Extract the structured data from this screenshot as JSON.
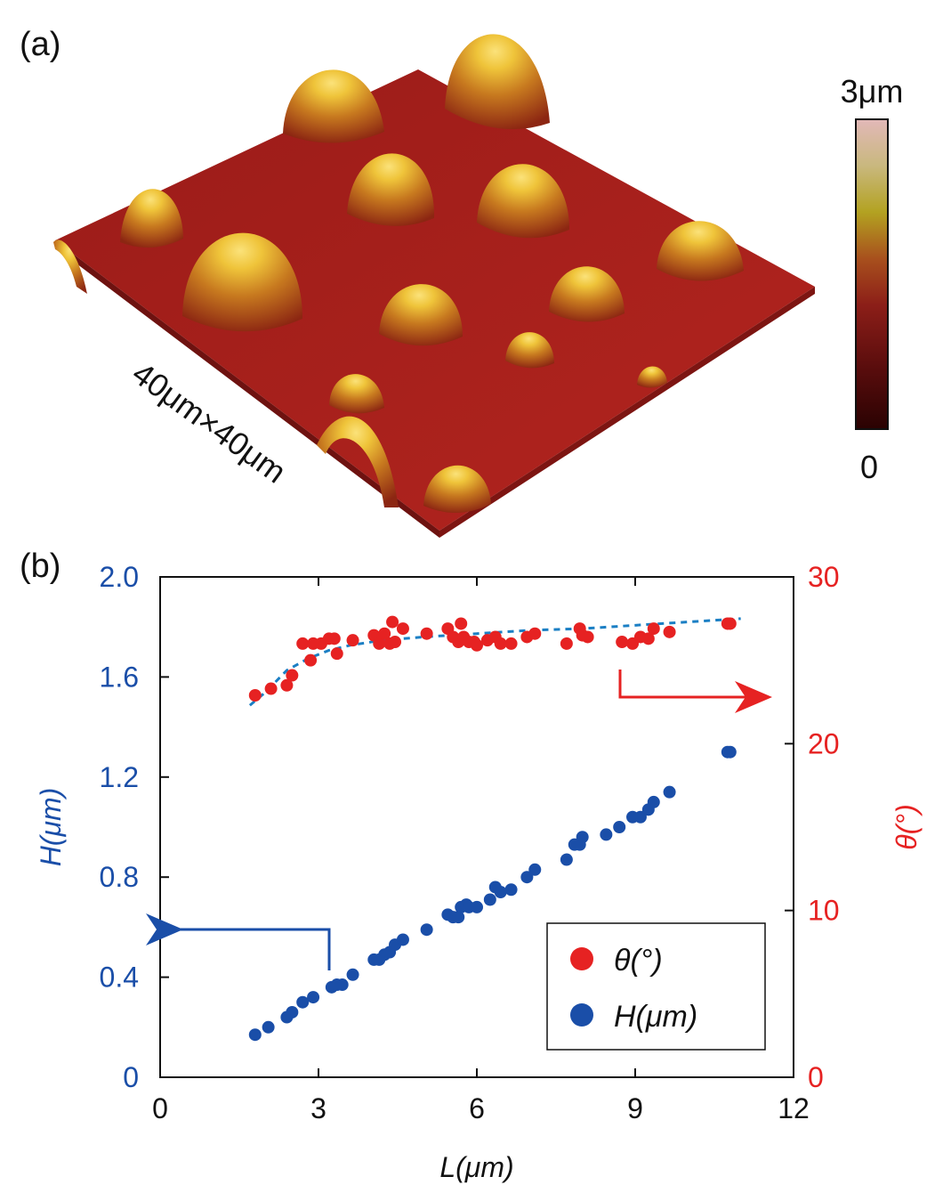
{
  "panel_a": {
    "label": "(a)",
    "scan_size_label": "40μm×40μm",
    "colorbar": {
      "max_label": "3μm",
      "min_label": "0",
      "stops": [
        "#2a0202",
        "#5a0d0d",
        "#8c1e18",
        "#a8501d",
        "#b3a221",
        "#c9b87e",
        "#e2b8b8"
      ]
    },
    "colors": {
      "substrate": "#a31c1a",
      "bump_base": "#a32a14",
      "bump_top": "#f0cc3a"
    }
  },
  "panel_b": {
    "label": "(b)",
    "colors": {
      "H": "#1a4ea8",
      "theta": "#e62222",
      "fit": "#1b7fc4"
    }
  },
  "chart_data": {
    "type": "scatter",
    "xlabel": "L(μm)",
    "ylabel_left": "H(μm)",
    "ylabel_right": "θ(°)",
    "xlim": [
      0,
      12
    ],
    "ylim_left": [
      0,
      2.0
    ],
    "ylim_right": [
      0,
      30
    ],
    "xticks": [
      0,
      3,
      6,
      9,
      12
    ],
    "yticks_left": [
      "0",
      "0.4",
      "0.8",
      "1.2",
      "1.6",
      "2.0"
    ],
    "yticks_right": [
      0,
      10,
      20,
      30
    ],
    "legend": {
      "placement": "bottom-right",
      "entries": [
        "θ(°)",
        "H(μm)"
      ]
    },
    "series": [
      {
        "name": "θ(°)",
        "axis": "right",
        "x": [
          1.8,
          2.1,
          2.4,
          2.5,
          2.7,
          2.85,
          2.9,
          3.05,
          3.2,
          3.3,
          3.35,
          3.65,
          4.05,
          4.15,
          4.25,
          4.35,
          4.4,
          4.45,
          4.6,
          5.05,
          5.45,
          5.55,
          5.65,
          5.7,
          5.75,
          5.85,
          5.95,
          6.0,
          6.2,
          6.35,
          6.45,
          6.65,
          6.95,
          7.1,
          7.7,
          7.95,
          8.0,
          8.1,
          8.75,
          8.95,
          9.1,
          9.25,
          9.35,
          9.65,
          10.75,
          10.8
        ],
        "y": [
          22.9,
          23.3,
          23.5,
          24.1,
          26.0,
          25.0,
          26.0,
          26.0,
          26.3,
          26.3,
          25.4,
          26.2,
          26.5,
          26.0,
          26.6,
          26.0,
          27.3,
          26.1,
          26.9,
          26.6,
          26.9,
          26.4,
          26.1,
          27.2,
          26.4,
          26.1,
          26.1,
          25.9,
          26.2,
          26.4,
          26.0,
          26.0,
          26.4,
          26.6,
          26.0,
          26.9,
          26.5,
          26.4,
          26.1,
          26.0,
          26.4,
          26.3,
          26.9,
          26.7,
          27.2,
          27.2
        ]
      },
      {
        "name": "H(μm)",
        "axis": "left",
        "x": [
          1.8,
          2.05,
          2.4,
          2.5,
          2.7,
          2.9,
          3.25,
          3.35,
          3.45,
          3.65,
          4.05,
          4.15,
          4.25,
          4.35,
          4.45,
          4.6,
          5.05,
          5.45,
          5.55,
          5.65,
          5.7,
          5.8,
          5.85,
          6.0,
          6.25,
          6.35,
          6.45,
          6.65,
          6.95,
          7.1,
          7.7,
          7.85,
          7.95,
          8.0,
          8.45,
          8.7,
          8.95,
          9.1,
          9.25,
          9.35,
          9.65,
          10.75,
          10.8
        ],
        "y": [
          0.17,
          0.2,
          0.24,
          0.26,
          0.3,
          0.32,
          0.36,
          0.37,
          0.37,
          0.41,
          0.47,
          0.47,
          0.49,
          0.5,
          0.53,
          0.55,
          0.59,
          0.65,
          0.64,
          0.64,
          0.68,
          0.69,
          0.68,
          0.68,
          0.71,
          0.76,
          0.74,
          0.75,
          0.8,
          0.83,
          0.87,
          0.93,
          0.93,
          0.96,
          0.97,
          1.0,
          1.04,
          1.04,
          1.07,
          1.1,
          1.14,
          1.3,
          1.3
        ]
      },
      {
        "name": "",
        "kind": "fit",
        "axis": "right",
        "x": [
          1.7,
          2.0,
          2.4,
          2.8,
          3.2,
          3.6,
          4.2,
          5.0,
          6.0,
          7.0,
          8.0,
          9.0,
          10.0,
          11.0
        ],
        "y": [
          22.3,
          23.1,
          24.4,
          25.1,
          25.6,
          25.9,
          26.2,
          26.4,
          26.6,
          26.8,
          26.9,
          27.1,
          27.3,
          27.5
        ]
      }
    ],
    "annotations": [
      {
        "type": "arrow",
        "points_to": "left axis",
        "color": "#1a4ea8"
      },
      {
        "type": "arrow",
        "points_to": "right axis",
        "color": "#e62222"
      }
    ]
  }
}
